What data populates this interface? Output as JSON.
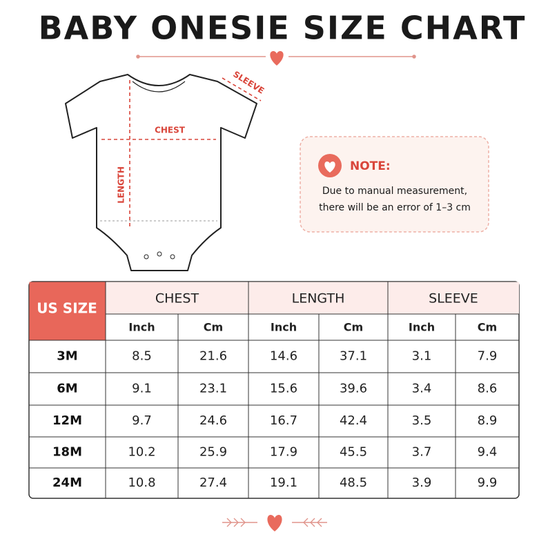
{
  "header": {
    "title": "BABY ONESIE SIZE CHART"
  },
  "diagram": {
    "chest": "CHEST",
    "length": "LENGTH",
    "sleeve": "SLEEVE"
  },
  "note": {
    "title": "NOTE:",
    "lines": [
      "Due to manual measurement,",
      "there will be an error of 1–3 cm"
    ]
  },
  "table": {
    "corner": "US SIZE",
    "groups": [
      "CHEST",
      "LENGTH",
      "SLEEVE"
    ],
    "units": [
      "Inch",
      "Cm",
      "Inch",
      "Cm",
      "Inch",
      "Cm"
    ],
    "rows": [
      [
        "3M",
        "8.5",
        "21.6",
        "14.6",
        "37.1",
        "3.1",
        "7.9"
      ],
      [
        "6M",
        "9.1",
        "23.1",
        "15.6",
        "39.6",
        "3.4",
        "8.6"
      ],
      [
        "12M",
        "9.7",
        "24.6",
        "16.7",
        "42.4",
        "3.5",
        "8.9"
      ],
      [
        "18M",
        "10.2",
        "25.9",
        "17.9",
        "45.5",
        "3.7",
        "9.4"
      ],
      [
        "24M",
        "10.8",
        "27.4",
        "19.1",
        "48.5",
        "3.9",
        "9.9"
      ]
    ]
  }
}
